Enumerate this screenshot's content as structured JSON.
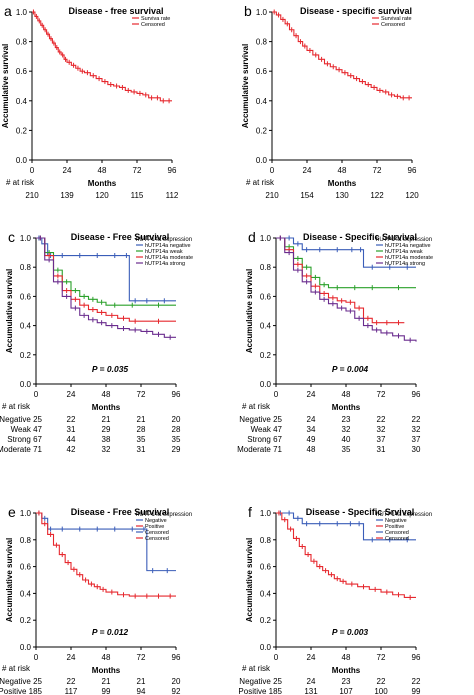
{
  "chart_data": [
    {
      "panel_letter": "a",
      "type": "line",
      "title": "Disease - free survival",
      "xlabel": "Months",
      "ylabel": "Accumulative survival",
      "xlim": [
        0,
        96
      ],
      "ylim": [
        0,
        1.0
      ],
      "x_ticks": [
        0,
        24,
        48,
        72,
        96
      ],
      "y_ticks": [
        0.0,
        0.2,
        0.4,
        0.6,
        0.8,
        1.0
      ],
      "legend": {
        "position": "top-right",
        "title": "",
        "entries": [
          "Surviva rate",
          "Censored"
        ]
      },
      "series": [
        {
          "name": "Surviva rate",
          "color": "#e6282e",
          "x": [
            0,
            2,
            4,
            6,
            8,
            10,
            12,
            14,
            16,
            18,
            20,
            22,
            24,
            27,
            30,
            33,
            36,
            40,
            44,
            48,
            52,
            56,
            60,
            64,
            68,
            72,
            76,
            80,
            84,
            88,
            92,
            96
          ],
          "y": [
            1.0,
            0.97,
            0.94,
            0.91,
            0.88,
            0.85,
            0.82,
            0.79,
            0.76,
            0.73,
            0.71,
            0.68,
            0.66,
            0.64,
            0.62,
            0.6,
            0.59,
            0.57,
            0.55,
            0.53,
            0.51,
            0.5,
            0.49,
            0.47,
            0.46,
            0.45,
            0.44,
            0.42,
            0.42,
            0.4,
            0.4,
            0.4
          ]
        }
      ],
      "p_value": "",
      "risk_table": {
        "label": "# at risk",
        "rows": [
          {
            "label": "",
            "values": [
              "210",
              "139",
              "120",
              "115",
              "112"
            ]
          }
        ]
      }
    },
    {
      "panel_letter": "b",
      "type": "line",
      "title": "Disease - specific survival",
      "xlabel": "Months",
      "ylabel": "Accumulative survival",
      "xlim": [
        0,
        96
      ],
      "ylim": [
        0,
        1.0
      ],
      "x_ticks": [
        0,
        24,
        48,
        72,
        96
      ],
      "y_ticks": [
        0.0,
        0.2,
        0.4,
        0.6,
        0.8,
        1.0
      ],
      "legend": {
        "position": "top-right",
        "title": "",
        "entries": [
          "Survival rate",
          "Censored"
        ]
      },
      "series": [
        {
          "name": "Survival rate",
          "color": "#e6282e",
          "x": [
            0,
            3,
            6,
            9,
            12,
            15,
            18,
            21,
            24,
            28,
            32,
            36,
            40,
            44,
            48,
            52,
            56,
            60,
            64,
            68,
            72,
            76,
            80,
            84,
            88,
            92,
            96
          ],
          "y": [
            1.0,
            0.98,
            0.95,
            0.92,
            0.88,
            0.84,
            0.8,
            0.77,
            0.74,
            0.71,
            0.68,
            0.65,
            0.63,
            0.61,
            0.59,
            0.57,
            0.55,
            0.53,
            0.51,
            0.49,
            0.47,
            0.46,
            0.44,
            0.43,
            0.42,
            0.42,
            0.42
          ]
        }
      ],
      "p_value": "",
      "risk_table": {
        "label": "# at risk",
        "rows": [
          {
            "label": "",
            "values": [
              "210",
              "154",
              "130",
              "122",
              "120"
            ]
          }
        ]
      }
    },
    {
      "panel_letter": "c",
      "type": "line",
      "title": "Disease - Free Survival",
      "xlabel": "Months",
      "ylabel": "Accumulative survival",
      "xlim": [
        0,
        96
      ],
      "ylim": [
        0,
        1.0
      ],
      "x_ticks": [
        0,
        24,
        48,
        72,
        96
      ],
      "y_ticks": [
        0.0,
        0.2,
        0.4,
        0.6,
        0.8,
        1.0
      ],
      "legend": {
        "position": "top-right",
        "title": "hUTP14a expression",
        "entries": [
          "hUTP14a negative",
          "hUTP14a weak",
          "hUTP14a moderate",
          "hUTP14a strong"
        ]
      },
      "series": [
        {
          "name": "hUTP14a negative",
          "color": "#3a5db8",
          "x": [
            0,
            4,
            8,
            12,
            24,
            36,
            48,
            60,
            64,
            72,
            80,
            96
          ],
          "y": [
            1.0,
            0.96,
            0.88,
            0.88,
            0.88,
            0.88,
            0.88,
            0.88,
            0.57,
            0.57,
            0.57,
            0.57
          ]
        },
        {
          "name": "hUTP14a weak",
          "color": "#2aa02a",
          "x": [
            0,
            6,
            12,
            18,
            24,
            30,
            36,
            42,
            48,
            60,
            72,
            96
          ],
          "y": [
            1.0,
            0.9,
            0.78,
            0.7,
            0.64,
            0.6,
            0.58,
            0.56,
            0.54,
            0.54,
            0.54,
            0.54
          ]
        },
        {
          "name": "hUTP14a moderate",
          "color": "#e6282e",
          "x": [
            0,
            6,
            12,
            18,
            24,
            30,
            36,
            42,
            48,
            56,
            64,
            72,
            96
          ],
          "y": [
            1.0,
            0.88,
            0.74,
            0.64,
            0.58,
            0.54,
            0.51,
            0.49,
            0.47,
            0.45,
            0.43,
            0.43,
            0.43
          ]
        },
        {
          "name": "hUTP14a strong",
          "color": "#6a2c8e",
          "x": [
            0,
            6,
            12,
            18,
            24,
            30,
            36,
            42,
            48,
            56,
            64,
            72,
            80,
            88,
            96
          ],
          "y": [
            1.0,
            0.85,
            0.7,
            0.6,
            0.52,
            0.47,
            0.44,
            0.42,
            0.4,
            0.38,
            0.37,
            0.36,
            0.34,
            0.32,
            0.32
          ]
        }
      ],
      "p_value": "P = 0.035",
      "risk_table": {
        "label": "# at risk",
        "rows": [
          {
            "label": "Negative 25",
            "values": [
              "22",
              "21",
              "21",
              "20"
            ]
          },
          {
            "label": "Weak 47",
            "values": [
              "31",
              "29",
              "28",
              "28"
            ]
          },
          {
            "label": "Strong 67",
            "values": [
              "44",
              "38",
              "35",
              "35"
            ]
          },
          {
            "label": "Moderate 71",
            "values": [
              "42",
              "32",
              "31",
              "29"
            ]
          }
        ]
      }
    },
    {
      "panel_letter": "d",
      "type": "line",
      "title": "Disease - Specific Survival",
      "xlabel": "Months",
      "ylabel": "Accumulative survival",
      "xlim": [
        0,
        96
      ],
      "ylim": [
        0,
        1.0
      ],
      "x_ticks": [
        0,
        24,
        48,
        72,
        96
      ],
      "y_ticks": [
        0.0,
        0.2,
        0.4,
        0.6,
        0.8,
        1.0
      ],
      "legend": {
        "position": "top-right",
        "title": "hUTP14a expression",
        "entries": [
          "hUTP14a negative",
          "hUTP14a weak",
          "hUTP14a moderate",
          "hUTP14a strong"
        ]
      },
      "series": [
        {
          "name": "hUTP14a negative",
          "color": "#3a5db8",
          "x": [
            0,
            6,
            12,
            18,
            24,
            36,
            48,
            56,
            60,
            72,
            84,
            96
          ],
          "y": [
            1.0,
            1.0,
            0.96,
            0.92,
            0.92,
            0.92,
            0.92,
            0.92,
            0.8,
            0.8,
            0.8,
            0.8
          ]
        },
        {
          "name": "hUTP14a weak",
          "color": "#2aa02a",
          "x": [
            0,
            6,
            12,
            18,
            24,
            30,
            36,
            48,
            60,
            72,
            96
          ],
          "y": [
            1.0,
            0.94,
            0.86,
            0.8,
            0.73,
            0.68,
            0.66,
            0.66,
            0.66,
            0.66,
            0.66
          ]
        },
        {
          "name": "hUTP14a moderate",
          "color": "#e6282e",
          "x": [
            0,
            6,
            12,
            18,
            24,
            30,
            36,
            42,
            48,
            54,
            60,
            66,
            72,
            80,
            88
          ],
          "y": [
            1.0,
            0.92,
            0.82,
            0.74,
            0.67,
            0.62,
            0.59,
            0.57,
            0.56,
            0.52,
            0.45,
            0.42,
            0.42,
            0.42,
            0.42
          ]
        },
        {
          "name": "hUTP14a strong",
          "color": "#6a2c8e",
          "x": [
            0,
            6,
            12,
            18,
            24,
            30,
            36,
            42,
            48,
            54,
            60,
            66,
            72,
            80,
            88,
            96
          ],
          "y": [
            1.0,
            0.9,
            0.78,
            0.7,
            0.63,
            0.58,
            0.55,
            0.52,
            0.5,
            0.45,
            0.4,
            0.37,
            0.35,
            0.33,
            0.3,
            0.29
          ]
        }
      ],
      "p_value": "P = 0.004",
      "risk_table": {
        "label": "# at risk",
        "rows": [
          {
            "label": "Negative 25",
            "values": [
              "24",
              "23",
              "22",
              "22"
            ]
          },
          {
            "label": "Weak 47",
            "values": [
              "34",
              "32",
              "32",
              "32"
            ]
          },
          {
            "label": "Strong 67",
            "values": [
              "49",
              "40",
              "37",
              "37"
            ]
          },
          {
            "label": "Moderate 71",
            "values": [
              "48",
              "35",
              "31",
              "30"
            ]
          }
        ]
      }
    },
    {
      "panel_letter": "e",
      "type": "line",
      "title": "Disease - Free Survival",
      "xlabel": "Months",
      "ylabel": "Accumulative survival",
      "xlim": [
        0,
        96
      ],
      "ylim": [
        0,
        1.0
      ],
      "x_ticks": [
        0,
        24,
        48,
        72,
        96
      ],
      "y_ticks": [
        0.0,
        0.2,
        0.4,
        0.6,
        0.8,
        1.0
      ],
      "legend": {
        "position": "top-right",
        "title": "hUTP14a expression",
        "entries": [
          "Negative",
          "Positive",
          "Censored",
          "Censored"
        ]
      },
      "series": [
        {
          "name": "Negative",
          "color": "#3a5db8",
          "x": [
            0,
            4,
            8,
            12,
            24,
            36,
            48,
            60,
            72,
            76,
            84,
            96
          ],
          "y": [
            1.0,
            0.96,
            0.88,
            0.88,
            0.88,
            0.88,
            0.88,
            0.88,
            0.88,
            0.57,
            0.57,
            0.57
          ]
        },
        {
          "name": "Positive",
          "color": "#e6282e",
          "x": [
            0,
            4,
            8,
            12,
            16,
            20,
            24,
            28,
            32,
            36,
            40,
            44,
            48,
            56,
            64,
            72,
            80,
            88,
            96
          ],
          "y": [
            1.0,
            0.92,
            0.84,
            0.76,
            0.69,
            0.63,
            0.58,
            0.54,
            0.5,
            0.47,
            0.45,
            0.43,
            0.41,
            0.39,
            0.38,
            0.38,
            0.38,
            0.38,
            0.38
          ]
        }
      ],
      "p_value": "P = 0.012",
      "risk_table": {
        "label": "# at risk",
        "rows": [
          {
            "label": "Negative 25",
            "values": [
              "22",
              "21",
              "21",
              "20"
            ]
          },
          {
            "label": "Positive 185",
            "values": [
              "117",
              "99",
              "94",
              "92"
            ]
          }
        ]
      }
    },
    {
      "panel_letter": "f",
      "type": "line",
      "title": "Disease - Specific Srvival",
      "xlabel": "Months",
      "ylabel": "Accumulative survival",
      "xlim": [
        0,
        96
      ],
      "ylim": [
        0,
        1.0
      ],
      "x_ticks": [
        0,
        24,
        48,
        72,
        96
      ],
      "y_ticks": [
        0.0,
        0.2,
        0.4,
        0.6,
        0.8,
        1.0
      ],
      "legend": {
        "position": "top-right",
        "title": "hUTP14a expression",
        "entries": [
          "Negative",
          "Positive",
          "Censored",
          "Censored"
        ]
      },
      "series": [
        {
          "name": "Negative",
          "color": "#3a5db8",
          "x": [
            0,
            6,
            12,
            18,
            24,
            36,
            48,
            54,
            60,
            72,
            84,
            96
          ],
          "y": [
            1.0,
            1.0,
            0.96,
            0.92,
            0.92,
            0.92,
            0.92,
            0.92,
            0.8,
            0.8,
            0.8,
            0.8
          ]
        },
        {
          "name": "Positive",
          "color": "#e6282e",
          "x": [
            0,
            4,
            8,
            12,
            16,
            20,
            24,
            28,
            32,
            36,
            40,
            44,
            48,
            56,
            64,
            72,
            80,
            88,
            96
          ],
          "y": [
            1.0,
            0.95,
            0.88,
            0.81,
            0.75,
            0.69,
            0.64,
            0.6,
            0.57,
            0.54,
            0.51,
            0.49,
            0.47,
            0.45,
            0.43,
            0.41,
            0.39,
            0.37,
            0.37
          ]
        }
      ],
      "p_value": "P = 0.003",
      "risk_table": {
        "label": "# at risk",
        "rows": [
          {
            "label": "Negative 25",
            "values": [
              "24",
              "23",
              "22",
              "22"
            ]
          },
          {
            "label": "Positive 185",
            "values": [
              "131",
              "107",
              "100",
              "99"
            ]
          }
        ]
      }
    }
  ]
}
